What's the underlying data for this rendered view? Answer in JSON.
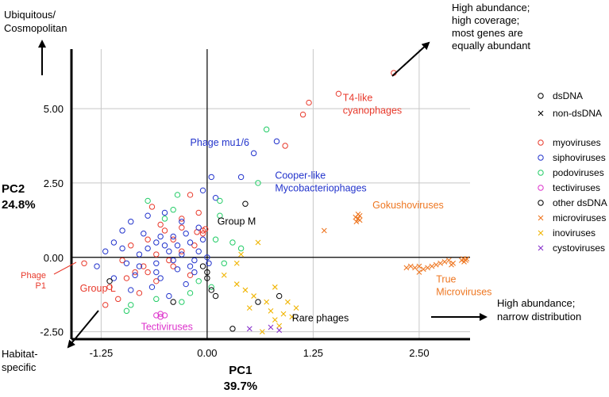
{
  "chart_data": {
    "type": "scatter",
    "xlabel": [
      "PC1",
      "39.7%"
    ],
    "ylabel": [
      "PC2",
      "24.8%"
    ],
    "xlim": [
      -1.6,
      3.1
    ],
    "ylim": [
      -2.75,
      7.0
    ],
    "x_ticks": [
      {
        "value": -1.25,
        "label": "-1.25"
      },
      {
        "value": 0,
        "label": "0.00"
      },
      {
        "value": 1.25,
        "label": "1.25"
      },
      {
        "value": 2.5,
        "label": "2.50"
      }
    ],
    "y_ticks": [
      {
        "value": -2.5,
        "label": "-2.50"
      },
      {
        "value": 0,
        "label": "0.00"
      },
      {
        "value": 2.5,
        "label": "2.50"
      },
      {
        "value": 5,
        "label": "5.00"
      }
    ],
    "grid": {
      "vertical": true,
      "horizontal": true
    },
    "legend": {
      "placement": "right",
      "shape_items": [
        {
          "marker": "circle",
          "label": "dsDNA",
          "color": "#000000"
        },
        {
          "marker": "x",
          "label": "non-dsDNA",
          "color": "#000000"
        }
      ],
      "group_items": [
        {
          "marker": "circle",
          "label": "myoviruses",
          "color": "#e8392b"
        },
        {
          "marker": "circle",
          "label": "siphoviruses",
          "color": "#2233cc"
        },
        {
          "marker": "circle",
          "label": "podoviruses",
          "color": "#22cc66"
        },
        {
          "marker": "circle",
          "label": "tectiviruses",
          "color": "#dd33cc"
        },
        {
          "marker": "circle",
          "label": "other dsDNA",
          "color": "#000000"
        },
        {
          "marker": "x",
          "label": "microviruses",
          "color": "#ee7722"
        },
        {
          "marker": "x",
          "label": "inoviruses",
          "color": "#f0b400"
        },
        {
          "marker": "x",
          "label": "cystoviruses",
          "color": "#8833cc"
        }
      ]
    },
    "series": [
      {
        "name": "myoviruses",
        "marker": "circle",
        "color": "#e8392b",
        "points": [
          [
            2.2,
            6.2
          ],
          [
            1.55,
            5.5
          ],
          [
            1.2,
            5.2
          ],
          [
            1.13,
            4.8
          ],
          [
            0.92,
            3.75
          ],
          [
            -1.45,
            -0.2
          ],
          [
            -0.1,
            1.5
          ],
          [
            -0.3,
            1.3
          ],
          [
            -0.5,
            0.9
          ],
          [
            -0.7,
            0.6
          ],
          [
            -0.9,
            0.4
          ],
          [
            -1.0,
            -0.1
          ],
          [
            -0.85,
            -0.5
          ],
          [
            -0.6,
            -0.8
          ],
          [
            -1.15,
            -1.0
          ],
          [
            -1.05,
            -1.4
          ],
          [
            -0.8,
            -1.2
          ],
          [
            -0.4,
            -0.3
          ],
          [
            -0.2,
            -0.6
          ],
          [
            -0.05,
            0.9
          ],
          [
            -0.05,
            0.8
          ],
          [
            -0.02,
            0.95
          ],
          [
            -0.12,
            0.85
          ],
          [
            -0.6,
            0.1
          ],
          [
            -0.75,
            -0.3
          ],
          [
            -0.95,
            -0.7
          ],
          [
            -1.2,
            -1.6
          ],
          [
            -0.3,
            0.2
          ],
          [
            -0.45,
            -0.1
          ],
          [
            -0.55,
            1.1
          ],
          [
            -0.2,
            2.1
          ],
          [
            -0.65,
            1.7
          ],
          [
            -0.3,
            1.0
          ],
          [
            -0.15,
            0.4
          ],
          [
            -0.7,
            -0.5
          ],
          [
            -0.4,
            0.6
          ]
        ]
      },
      {
        "name": "siphoviruses",
        "marker": "circle",
        "color": "#2233cc",
        "points": [
          [
            0.82,
            3.9
          ],
          [
            0.55,
            3.5
          ],
          [
            0.4,
            2.7
          ],
          [
            0.05,
            2.7
          ],
          [
            -0.05,
            2.25
          ],
          [
            0.1,
            2.0
          ],
          [
            -1.3,
            -0.3
          ],
          [
            -1.2,
            0.2
          ],
          [
            -1.1,
            0.5
          ],
          [
            -1.0,
            0.9
          ],
          [
            -0.9,
            1.2
          ],
          [
            -0.8,
            0.1
          ],
          [
            -0.7,
            0.3
          ],
          [
            -0.6,
            -0.2
          ],
          [
            -0.5,
            0.4
          ],
          [
            -0.4,
            0.7
          ],
          [
            -0.3,
            0.1
          ],
          [
            -0.2,
            -0.3
          ],
          [
            -0.1,
            0.2
          ],
          [
            0.0,
            0.0
          ],
          [
            -0.65,
            -1.0
          ],
          [
            -0.45,
            -1.3
          ],
          [
            -0.25,
            -0.9
          ],
          [
            -0.15,
            -0.5
          ],
          [
            -0.85,
            -0.6
          ],
          [
            -0.95,
            -0.2
          ],
          [
            -0.55,
            0.7
          ],
          [
            -0.35,
            -0.4
          ],
          [
            -0.75,
            0.8
          ],
          [
            -1.0,
            0.3
          ],
          [
            -0.5,
            1.5
          ],
          [
            -0.3,
            1.2
          ],
          [
            -0.1,
            1.0
          ],
          [
            -0.05,
            0.6
          ],
          [
            -0.6,
            0.5
          ],
          [
            -0.4,
            -0.1
          ],
          [
            -0.2,
            0.5
          ],
          [
            -0.8,
            -0.3
          ],
          [
            -1.1,
            -0.7
          ],
          [
            -0.9,
            -1.1
          ],
          [
            -0.7,
            1.4
          ],
          [
            -0.45,
            0.2
          ],
          [
            -0.25,
            0.8
          ],
          [
            -0.6,
            -0.5
          ],
          [
            0.02,
            -0.2
          ],
          [
            -0.15,
            -0.1
          ],
          [
            -0.35,
            0.4
          ],
          [
            -0.55,
            -0.7
          ]
        ]
      },
      {
        "name": "podoviruses",
        "marker": "circle",
        "color": "#22cc66",
        "points": [
          [
            0.7,
            4.3
          ],
          [
            0.6,
            2.5
          ],
          [
            0.3,
            0.5
          ],
          [
            0.4,
            0.3
          ],
          [
            0.1,
            0.6
          ],
          [
            0.15,
            1.4
          ],
          [
            -0.35,
            2.1
          ],
          [
            -0.5,
            1.3
          ],
          [
            -0.7,
            1.9
          ],
          [
            -0.2,
            -1.2
          ],
          [
            -0.3,
            -1.5
          ],
          [
            -0.9,
            -1.6
          ],
          [
            -0.95,
            -1.8
          ],
          [
            -0.6,
            -1.4
          ],
          [
            0.05,
            -1.0
          ],
          [
            0.2,
            -0.2
          ],
          [
            -0.1,
            -0.8
          ],
          [
            0.15,
            1.9
          ],
          [
            -0.4,
            1.6
          ]
        ]
      },
      {
        "name": "tectiviruses",
        "marker": "circle",
        "color": "#dd33cc",
        "points": [
          [
            -0.6,
            -1.95
          ],
          [
            -0.55,
            -2.0
          ],
          [
            -0.5,
            -1.95
          ],
          [
            -0.55,
            -1.9
          ]
        ]
      },
      {
        "name": "other dsDNA",
        "marker": "circle",
        "color": "#000000",
        "points": [
          [
            0.45,
            1.8
          ],
          [
            -0.05,
            -0.3
          ],
          [
            0.0,
            -0.5
          ],
          [
            0.05,
            -1.1
          ],
          [
            0.6,
            -1.5
          ],
          [
            0.85,
            -1.3
          ],
          [
            -1.15,
            -0.8
          ],
          [
            0.0,
            -0.7
          ],
          [
            0.3,
            -2.4
          ],
          [
            -0.4,
            -1.5
          ],
          [
            0.1,
            -1.3
          ]
        ]
      },
      {
        "name": "microviruses",
        "marker": "x",
        "color": "#ee7722",
        "points": [
          [
            1.75,
            1.35
          ],
          [
            1.78,
            1.3
          ],
          [
            1.8,
            1.4
          ],
          [
            1.76,
            1.2
          ],
          [
            1.8,
            1.25
          ],
          [
            1.78,
            1.45
          ],
          [
            1.38,
            0.9
          ],
          [
            2.35,
            -0.35
          ],
          [
            2.4,
            -0.3
          ],
          [
            2.45,
            -0.35
          ],
          [
            2.5,
            -0.3
          ],
          [
            2.55,
            -0.4
          ],
          [
            2.6,
            -0.35
          ],
          [
            2.65,
            -0.3
          ],
          [
            2.7,
            -0.25
          ],
          [
            2.75,
            -0.2
          ],
          [
            2.8,
            -0.15
          ],
          [
            2.85,
            -0.1
          ],
          [
            2.88,
            -0.25
          ],
          [
            2.9,
            -0.2
          ],
          [
            3.0,
            -0.1
          ],
          [
            3.02,
            -0.05
          ],
          [
            3.05,
            -0.1
          ],
          [
            3.03,
            -0.15
          ],
          [
            3.06,
            -0.05
          ],
          [
            2.5,
            -0.5
          ]
        ]
      },
      {
        "name": "inoviruses",
        "marker": "x",
        "color": "#f0b400",
        "points": [
          [
            0.35,
            -0.9
          ],
          [
            0.45,
            -1.1
          ],
          [
            0.55,
            -1.3
          ],
          [
            0.7,
            -1.5
          ],
          [
            0.75,
            -1.8
          ],
          [
            0.8,
            -2.1
          ],
          [
            0.85,
            -2.3
          ],
          [
            1.05,
            -1.7
          ],
          [
            1.0,
            -2.0
          ],
          [
            0.95,
            -1.5
          ],
          [
            0.6,
            0.5
          ],
          [
            0.4,
            0.1
          ],
          [
            0.35,
            -0.2
          ],
          [
            0.8,
            -1.0
          ],
          [
            0.9,
            -1.9
          ],
          [
            0.65,
            -2.5
          ],
          [
            0.5,
            -1.7
          ],
          [
            0.2,
            -0.6
          ]
        ]
      },
      {
        "name": "cystoviruses",
        "marker": "x",
        "color": "#8833cc",
        "points": [
          [
            0.5,
            -2.4
          ],
          [
            0.75,
            -2.35
          ],
          [
            0.85,
            -2.45
          ]
        ]
      }
    ],
    "annotations": [
      {
        "text": "T4-like\ncyanophages",
        "x": 1.6,
        "y": 5.25,
        "color": "#e8392b"
      },
      {
        "text": "Phage mu1/6",
        "x": -0.2,
        "y": 3.75,
        "color": "#2233cc"
      },
      {
        "text": "Cooper-like\nMycobacteriophages",
        "x": 0.8,
        "y": 2.65,
        "color": "#2233cc"
      },
      {
        "text": "Gokushoviruses",
        "x": 1.95,
        "y": 1.65,
        "color": "#ee7722"
      },
      {
        "text": "Group M",
        "x": 0.12,
        "y": 1.1,
        "color": "#000000"
      },
      {
        "text": "True\nMicroviruses",
        "x": 2.7,
        "y": -0.85,
        "color": "#ee7722"
      },
      {
        "text": "Phage\nP1",
        "x": -1.9,
        "y": -0.7,
        "color": "#e8392b"
      },
      {
        "text": "Group L",
        "x": -1.5,
        "y": -1.15,
        "color": "#e8392b"
      },
      {
        "text": "Tectiviruses",
        "x": -0.78,
        "y": -2.45,
        "color": "#dd33cc"
      },
      {
        "text": "Rare phages",
        "x": 1.0,
        "y": -2.15,
        "color": "#000000"
      }
    ],
    "corner_labels": {
      "top_left": "Ubiquitous/\nCosmopolitan",
      "top_right": "High abundance;\nhigh coverage;\nmost genes are\nequally abundant",
      "right": "High abundance;\nnarrow distribution",
      "bottom_left": "Habitat-\nspecific"
    }
  }
}
